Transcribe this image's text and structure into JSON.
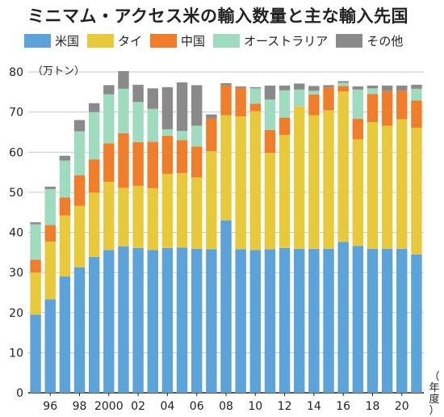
{
  "title": "ミニマム・アクセス米の輸入数量と主な輸入先国",
  "legend": [
    {
      "name": "米国",
      "color": "#5ba3d9"
    },
    {
      "name": "タイ",
      "color": "#e8c93a"
    },
    {
      "name": "中国",
      "color": "#f07d2a"
    },
    {
      "name": "オーストラリア",
      "color": "#9fdcbf"
    },
    {
      "name": "その他",
      "color": "#8a8a8a"
    }
  ],
  "chart_data": {
    "type": "bar",
    "stacked": true,
    "ylabel": "（万トン）",
    "xlabel": "（年度）",
    "ylim": [
      0,
      80
    ],
    "yticks": [
      0,
      10,
      20,
      30,
      40,
      50,
      60,
      70,
      80
    ],
    "grid": "horizontal",
    "categories": [
      "1995",
      "1996",
      "1997",
      "1998",
      "1999",
      "2000",
      "2001",
      "2002",
      "2003",
      "2004",
      "2005",
      "2006",
      "2007",
      "2008",
      "2009",
      "2010",
      "2011",
      "2012",
      "2013",
      "2014",
      "2015",
      "2016",
      "2017",
      "2018",
      "2019",
      "2020",
      "2021"
    ],
    "xtick_labels": [
      "",
      "96",
      "",
      "98",
      "",
      "2000",
      "",
      "02",
      "",
      "04",
      "",
      "06",
      "",
      "08",
      "",
      "10",
      "",
      "12",
      "",
      "14",
      "",
      "16",
      "",
      "18",
      "",
      "20",
      ""
    ],
    "series": [
      {
        "name": "米国",
        "color": "#5ba3d9",
        "values": [
          19.5,
          23.3,
          29,
          31.3,
          33.9,
          35.6,
          36.5,
          36.1,
          35.6,
          36.1,
          36.2,
          35.9,
          35.8,
          43,
          35.8,
          35.6,
          35.8,
          36.1,
          35.9,
          35.9,
          35.9,
          37.6,
          36.6,
          35.9,
          35.9,
          35.9,
          34.5
        ]
      },
      {
        "name": "タイ",
        "color": "#e8c93a",
        "values": [
          10.5,
          14.4,
          15.2,
          15.3,
          16,
          17,
          14.6,
          15.5,
          15.4,
          18.5,
          18.6,
          17.8,
          24.4,
          26.2,
          33.1,
          34.6,
          24,
          28.2,
          35.5,
          33.3,
          34.5,
          37.5,
          26.6,
          31.6,
          30.7,
          32.3,
          31.6
        ]
      },
      {
        "name": "中国",
        "color": "#f07d2a",
        "values": [
          3.2,
          4.1,
          4.5,
          7.6,
          8.3,
          9.6,
          13.6,
          10.9,
          11.6,
          9.5,
          8.2,
          7.7,
          8.2,
          7.4,
          7.1,
          1.9,
          5.7,
          4.3,
          0,
          5.2,
          5.7,
          1.4,
          5.1,
          7,
          8.6,
          7.1,
          6.8
        ]
      },
      {
        "name": "オーストラリア",
        "color": "#9fdcbf",
        "values": [
          8.8,
          9,
          9.2,
          11,
          11.8,
          12.2,
          11.1,
          10,
          8.2,
          1.6,
          2.3,
          5.2,
          0,
          0,
          0,
          3.8,
          7.6,
          6.8,
          4.2,
          0.9,
          0,
          0.8,
          7.3,
          1.4,
          0,
          0,
          2.9
        ]
      },
      {
        "name": "その他",
        "color": "#8a8a8a",
        "values": [
          0.5,
          0.6,
          1.2,
          2.8,
          2.2,
          2.3,
          4.4,
          4.3,
          5.1,
          10.5,
          12.1,
          10.1,
          1,
          0.6,
          0.4,
          0.3,
          3.5,
          1.2,
          1.5,
          1.2,
          0.6,
          0.4,
          0.8,
          0.7,
          1.4,
          1.3,
          1
        ]
      }
    ]
  }
}
